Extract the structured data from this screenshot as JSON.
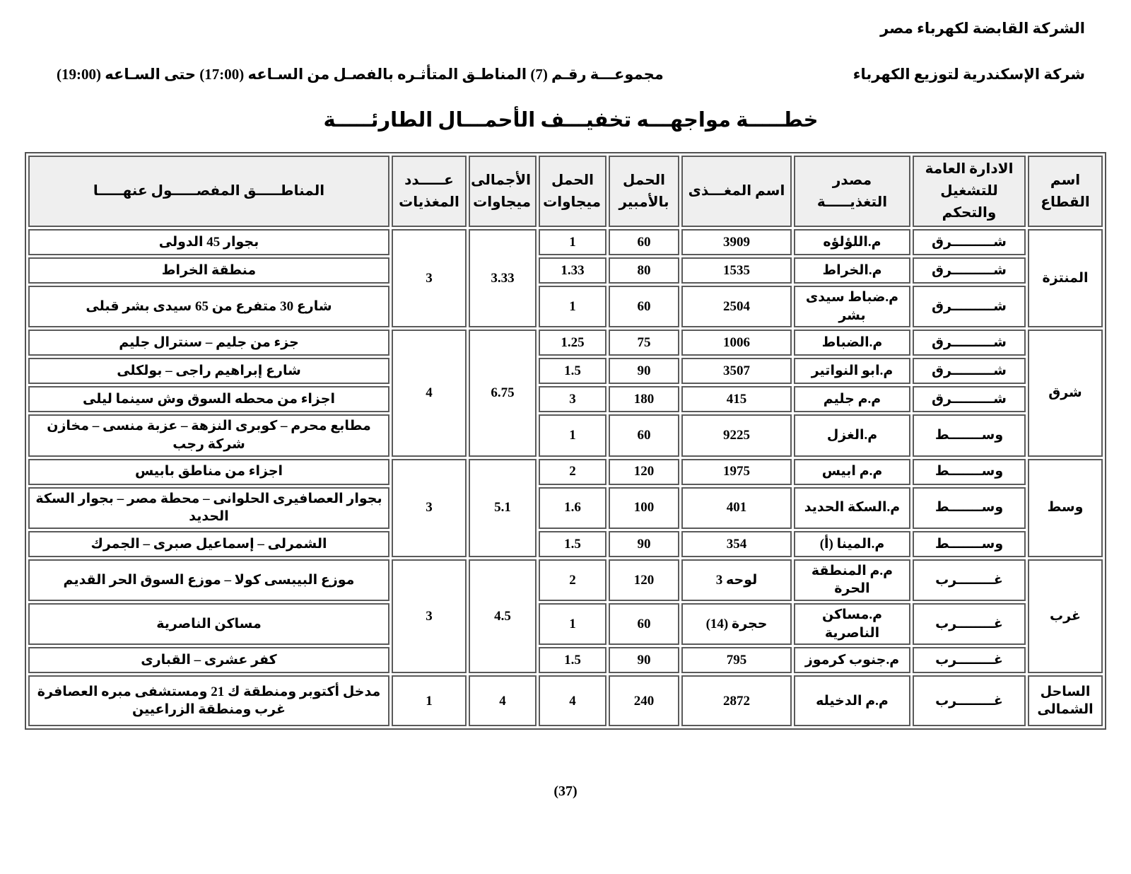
{
  "header": {
    "holding_company": "الشركة القابضة لكهرباء مصر",
    "distribution_company": "شركة الإسكندرية لتوزيع الكهرباء",
    "group_line": "مجموعـــة رقـم (7) المناطـق المتأثـره بالفصـل من السـاعه (17:00) حتى السـاعه (19:00)",
    "title": "خطـــــة مواجهـــه تخفيـــف الأحمـــال الطارئـــــة"
  },
  "table": {
    "columns": {
      "sector": "اسم القطاع",
      "admin": "الادارة العامة\nللتشغيل والتحكم",
      "source": "مصدر التغذيـــــة",
      "feeder": "اسم المغـــذى",
      "load_amp": "الحمل\nبالأمبير",
      "load_mw": "الحمل\nميجاوات",
      "total_mw": "الأجمالى\nميجاوات",
      "feeder_count": "عـــــدد\nالمغذيات",
      "areas": "المناطـــــق المفصـــــول عنهـــــا"
    },
    "groups": [
      {
        "sector": "المنتزة",
        "feeder_count": "3",
        "total_mw": "3.33",
        "rows": [
          {
            "admin": "شـــــــــرق",
            "source": "م.اللؤلؤه",
            "feeder": "3909",
            "amp": "60",
            "mw": "1",
            "areas": "بجوار 45 الدولى"
          },
          {
            "admin": "شـــــــــرق",
            "source": "م.الخراط",
            "feeder": "1535",
            "amp": "80",
            "mw": "1.33",
            "areas": "منطقة الخراط"
          },
          {
            "admin": "شـــــــــرق",
            "source": "م.ضباط سيدى بشر",
            "feeder": "2504",
            "amp": "60",
            "mw": "1",
            "areas": "شارع 30 متفرع من 65 سيدى بشر قبلى"
          }
        ]
      },
      {
        "sector": "شرق",
        "feeder_count": "4",
        "total_mw": "6.75",
        "rows": [
          {
            "admin": "شـــــــــرق",
            "source": "م.الضباط",
            "feeder": "1006",
            "amp": "75",
            "mw": "1.25",
            "areas": "جزء من جليم – سنترال جليم"
          },
          {
            "admin": "شـــــــــرق",
            "source": "م.ابو النواتير",
            "feeder": "3507",
            "amp": "90",
            "mw": "1.5",
            "areas": "شارع إبراهيم راجى – بولكلى"
          },
          {
            "admin": "شـــــــــرق",
            "source": "م.م جليم",
            "feeder": "415",
            "amp": "180",
            "mw": "3",
            "areas": "اجزاء من محطه السوق وش سينما ليلى"
          },
          {
            "admin": "وســـــــط",
            "source": "م.الغزل",
            "feeder": "9225",
            "amp": "60",
            "mw": "1",
            "areas": "مطابع محرم – كوبرى النزهة – عزبة منسى – مخازن شركة رجب"
          }
        ]
      },
      {
        "sector": "وسط",
        "feeder_count": "3",
        "total_mw": "5.1",
        "rows": [
          {
            "admin": "وســـــــط",
            "source": "م.م ابيس",
            "feeder": "1975",
            "amp": "120",
            "mw": "2",
            "areas": "اجزاء من مناطق بابيس"
          },
          {
            "admin": "وســـــــط",
            "source": "م.السكة الحديد",
            "feeder": "401",
            "amp": "100",
            "mw": "1.6",
            "areas": "بجوار العصافيرى الحلوانى – محطة مصر – بجوار السكة الحديد"
          },
          {
            "admin": "وســـــــط",
            "source": "م.المينا (أ)",
            "feeder": "354",
            "amp": "90",
            "mw": "1.5",
            "areas": "الشمرلى – إسماعيل صبرى – الجمرك"
          }
        ]
      },
      {
        "sector": "غرب",
        "feeder_count": "3",
        "total_mw": "4.5",
        "rows": [
          {
            "admin": "غــــــــرب",
            "source": "م.م المنطقة الحرة",
            "feeder": "لوحه 3",
            "amp": "120",
            "mw": "2",
            "areas": "موزع البيبسى كولا – موزع السوق الحر القديم"
          },
          {
            "admin": "غــــــــرب",
            "source": "م.مساكن الناصرية",
            "feeder": "حجرة (14)",
            "amp": "60",
            "mw": "1",
            "areas": "مساكن الناصرية"
          },
          {
            "admin": "غــــــــرب",
            "source": "م.جنوب كرموز",
            "feeder": "795",
            "amp": "90",
            "mw": "1.5",
            "areas": "كفر عشرى – القبارى"
          }
        ]
      },
      {
        "sector": "الساحل\nالشمالى",
        "feeder_count": "1",
        "total_mw": "4",
        "rows": [
          {
            "admin": "غــــــــرب",
            "source": "م.م الدخيله",
            "feeder": "2872",
            "amp": "240",
            "mw": "4",
            "areas": "مدخل أكتوبر ومنطقة ك 21 ومستشفى مبره العصافرة غرب ومنطقة الزراعيين"
          }
        ]
      }
    ]
  },
  "page_number": "(37)"
}
